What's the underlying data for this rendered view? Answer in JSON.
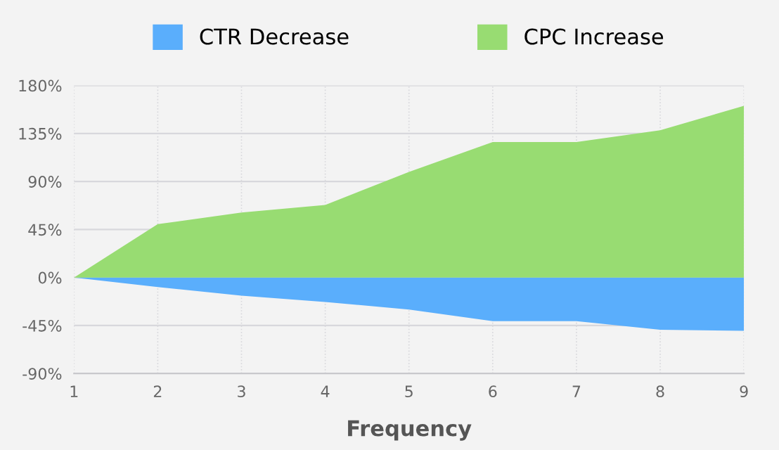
{
  "chart_data": {
    "type": "area",
    "xlabel": "Frequency",
    "x": [
      1,
      2,
      3,
      4,
      5,
      6,
      7,
      8,
      9
    ],
    "series": [
      {
        "name": "CTR Decrease",
        "color": "#5aaefc",
        "values": [
          0,
          -9,
          -17,
          -23,
          -30,
          -41,
          -41,
          -49,
          -50
        ]
      },
      {
        "name": "CPC Increase",
        "color": "#98dc72",
        "values": [
          0,
          50,
          61,
          68,
          99,
          127,
          127,
          138,
          161
        ]
      }
    ],
    "xlim": [
      1,
      9
    ],
    "xticks": [
      1,
      2,
      3,
      4,
      5,
      6,
      7,
      8,
      9
    ],
    "ylim": [
      -90,
      180
    ],
    "yticks": [
      {
        "value": -90,
        "label": "-90%"
      },
      {
        "value": -45,
        "label": "-45%"
      },
      {
        "value": 0,
        "label": "0%"
      },
      {
        "value": 45,
        "label": "45%"
      },
      {
        "value": 90,
        "label": "90%"
      },
      {
        "value": 135,
        "label": "135%"
      },
      {
        "value": 180,
        "label": "180%"
      }
    ],
    "grid": true,
    "legend": "top"
  }
}
